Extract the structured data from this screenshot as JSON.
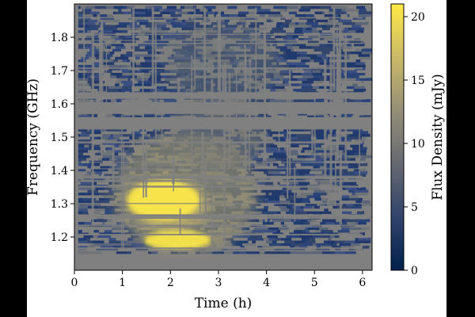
{
  "chart_data": {
    "type": "heatmap",
    "title": "",
    "xlabel": "Time (h)",
    "ylabel": "Frequency (GHz)",
    "colorbar_label": "Flux Density (mJy)",
    "xlim": [
      0,
      6.2
    ],
    "ylim": [
      1.1,
      1.9
    ],
    "clim": [
      0,
      21
    ],
    "x_ticks": [
      0,
      1,
      2,
      3,
      4,
      5,
      6
    ],
    "y_ticks": [
      1.2,
      1.3,
      1.4,
      1.5,
      1.6,
      1.7,
      1.8
    ],
    "colorbar_ticks": [
      0,
      5,
      10,
      15,
      20
    ],
    "colormap": [
      "#00204d",
      "#31446b",
      "#666970",
      "#958f78",
      "#cbba69",
      "#ffea46"
    ],
    "mask_color": "#808080",
    "data_extent": {
      "t_start": 0.08,
      "t_end": 6.0,
      "f_min": 1.15,
      "f_max": 1.89
    },
    "emission_region": {
      "description_values": {
        "t_center": 1.9,
        "f_center": 1.29,
        "peak_flux": 21,
        "t_range": [
          1.0,
          3.0
        ],
        "f_range": [
          1.16,
          1.39
        ]
      },
      "diffuse_band": {
        "t_range": [
          0.5,
          4.0
        ],
        "f_range": [
          1.15,
          1.55
        ],
        "typical_flux": 10
      }
    },
    "rfi_masked_bands_ghz": [
      [
        1.525,
        1.56
      ],
      [
        1.57,
        1.605
      ],
      [
        1.615,
        1.635
      ],
      [
        1.26,
        1.268
      ],
      [
        1.375,
        1.38
      ]
    ]
  }
}
